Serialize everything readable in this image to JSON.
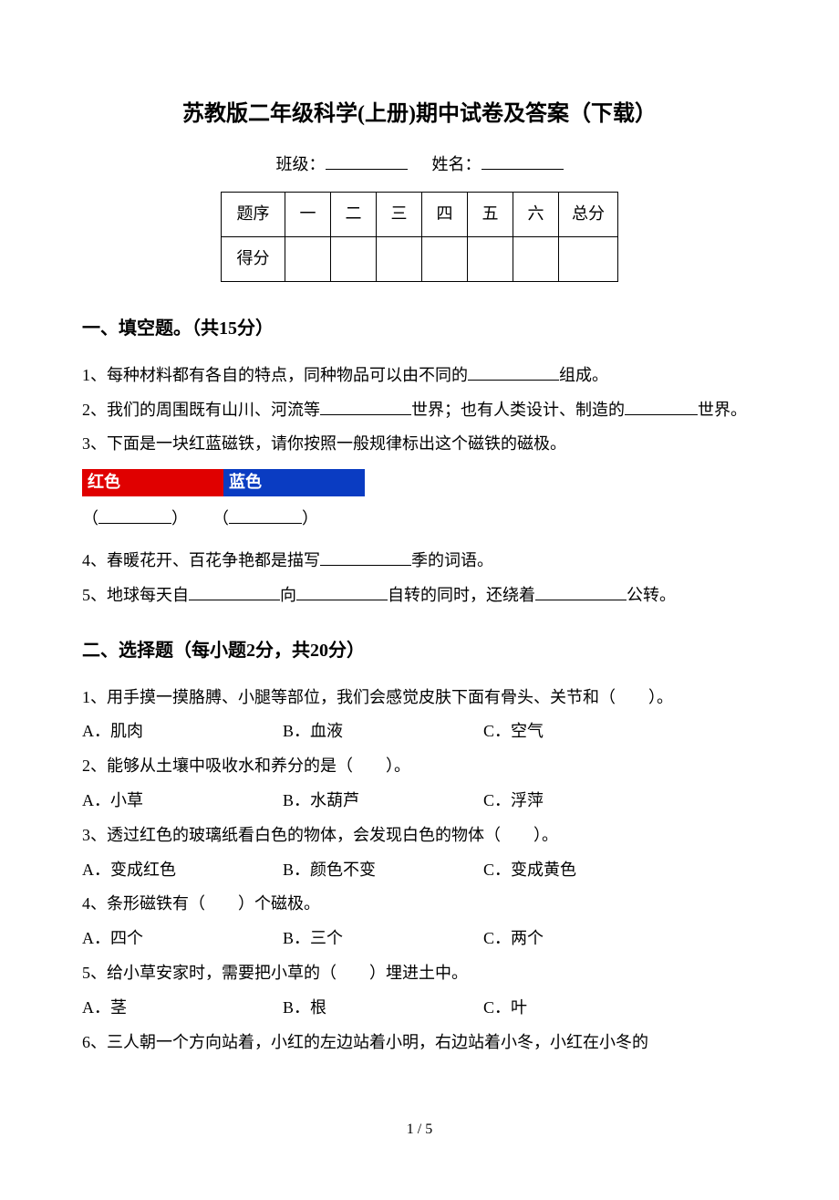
{
  "title": "苏教版二年级科学(上册)期中试卷及答案（下载）",
  "header": {
    "class_label": "班级：",
    "name_label": "姓名："
  },
  "score_table": {
    "row1": [
      "题序",
      "一",
      "二",
      "三",
      "四",
      "五",
      "六",
      "总分"
    ],
    "row2_label": "得分"
  },
  "section1": {
    "title": "一、填空题。（共15分）",
    "q1_pre": "1、每种材料都有各自的特点，同种物品可以由不同的",
    "q1_post": "组成。",
    "q2_pre": "2、我们的周围既有山川、河流等",
    "q2_mid": "世界；也有人类设计、制造的",
    "q2_post": "世界。",
    "q3": "3、下面是一块红蓝磁铁，请你按照一般规律标出这个磁铁的磁极。",
    "magnet_red": "红色",
    "magnet_blue": "蓝色",
    "magnet_red_color": "#e00000",
    "magnet_blue_color": "#0a3cc2",
    "paren_left": "（",
    "paren_right": "）",
    "q4_pre": "4、春暖花开、百花争艳都是描写",
    "q4_post": "季的词语。",
    "q5_pre": "5、地球每天自",
    "q5_mid1": "向",
    "q5_mid2": "自转的同时，还绕着",
    "q5_post": "公转。"
  },
  "section2": {
    "title": "二、选择题（每小题2分，共20分）",
    "q1": "1、用手摸一摸胳膊、小腿等部位，我们会感觉皮肤下面有骨头、关节和（　　）。",
    "q1_a": "A．肌肉",
    "q1_b": "B．血液",
    "q1_c": "C．空气",
    "q2": "2、能够从土壤中吸收水和养分的是（　　）。",
    "q2_a": "A．小草",
    "q2_b": "B．水葫芦",
    "q2_c": "C．浮萍",
    "q3": "3、透过红色的玻璃纸看白色的物体，会发现白色的物体（　　）。",
    "q3_a": "A．变成红色",
    "q3_b": "B．颜色不变",
    "q3_c": "C．变成黄色",
    "q4": "4、条形磁铁有（　　）个磁极。",
    "q4_a": "A．四个",
    "q4_b": "B．三个",
    "q4_c": "C．两个",
    "q5": "5、给小草安家时，需要把小草的（　　）埋进土中。",
    "q5_a": "A．茎",
    "q5_b": "B．根",
    "q5_c": "C．叶",
    "q6": "6、三人朝一个方向站着，小红的左边站着小明，右边站着小冬，小红在小冬的"
  },
  "footer": "1 / 5"
}
